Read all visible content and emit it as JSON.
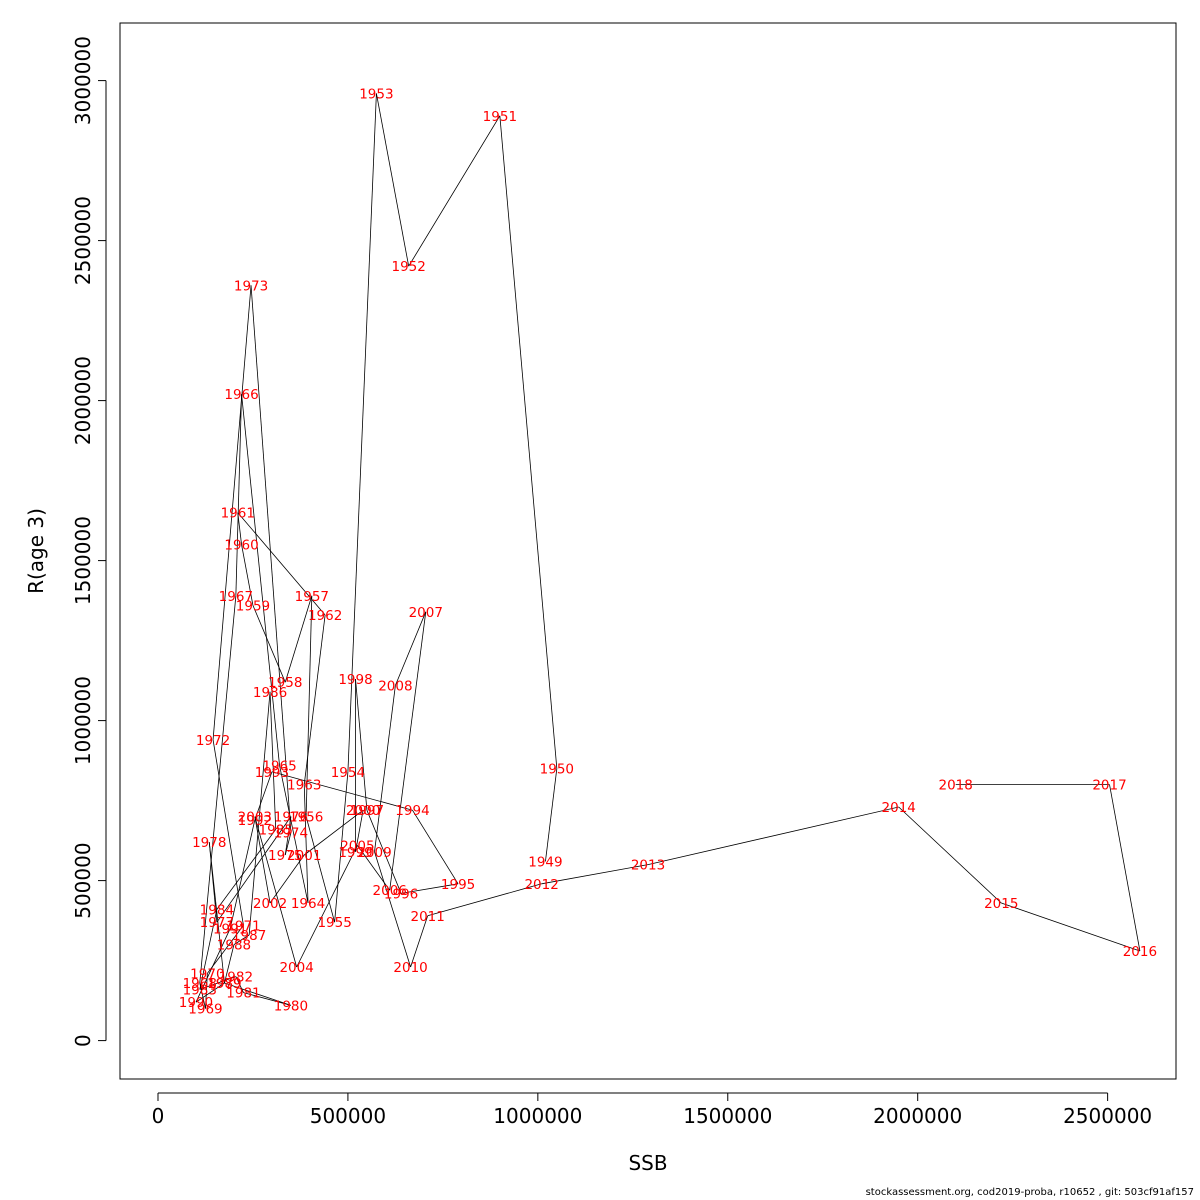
{
  "chart_data": {
    "type": "line",
    "xlabel": "SSB",
    "ylabel": "R(age 3)",
    "xlim": [
      -100000,
      2680000
    ],
    "ylim": [
      -120000,
      3180000
    ],
    "xticks": [
      0,
      500000,
      1000000,
      1500000,
      2000000,
      2500000
    ],
    "xtick_labels": [
      "0",
      "500000",
      "1000000",
      "1500000",
      "2000000",
      "2500000"
    ],
    "yticks": [
      0,
      500000,
      1000000,
      1500000,
      2000000,
      2500000,
      3000000
    ],
    "ytick_labels": [
      "0",
      "500000",
      "1000000",
      "1500000",
      "2000000",
      "2500000",
      "3000000"
    ],
    "label_color": "#ff0000",
    "line_color": "#000000",
    "series": [
      {
        "points": [
          {
            "year": "1949",
            "x": 1020000,
            "y": 560000
          },
          {
            "year": "1950",
            "x": 1050000,
            "y": 850000
          },
          {
            "year": "1951",
            "x": 900000,
            "y": 2890000
          },
          {
            "year": "1952",
            "x": 660000,
            "y": 2420000
          },
          {
            "year": "1953",
            "x": 575000,
            "y": 2960000
          },
          {
            "year": "1954",
            "x": 500000,
            "y": 840000
          },
          {
            "year": "1955",
            "x": 465000,
            "y": 370000
          },
          {
            "year": "1956",
            "x": 390000,
            "y": 700000
          },
          {
            "year": "1957",
            "x": 405000,
            "y": 1390000
          },
          {
            "year": "1958",
            "x": 335000,
            "y": 1120000
          },
          {
            "year": "1959",
            "x": 250000,
            "y": 1360000
          },
          {
            "year": "1960",
            "x": 220000,
            "y": 1550000
          },
          {
            "year": "1961",
            "x": 210000,
            "y": 1650000
          },
          {
            "year": "1962",
            "x": 440000,
            "y": 1330000
          },
          {
            "year": "1963",
            "x": 385000,
            "y": 800000
          },
          {
            "year": "1964",
            "x": 395000,
            "y": 430000
          },
          {
            "year": "1965",
            "x": 320000,
            "y": 860000
          },
          {
            "year": "1966",
            "x": 220000,
            "y": 2020000
          },
          {
            "year": "1967",
            "x": 205000,
            "y": 1390000
          },
          {
            "year": "1968",
            "x": 110000,
            "y": 180000
          },
          {
            "year": "1969",
            "x": 125000,
            "y": 100000
          },
          {
            "year": "1970",
            "x": 130000,
            "y": 210000
          },
          {
            "year": "1971",
            "x": 225000,
            "y": 360000
          },
          {
            "year": "1972",
            "x": 145000,
            "y": 940000
          },
          {
            "year": "1973",
            "x": 245000,
            "y": 2360000
          },
          {
            "year": "1974",
            "x": 350000,
            "y": 650000
          },
          {
            "year": "1975",
            "x": 335000,
            "y": 580000
          },
          {
            "year": "1976",
            "x": 350000,
            "y": 700000
          },
          {
            "year": "1977",
            "x": 155000,
            "y": 370000
          },
          {
            "year": "1978",
            "x": 135000,
            "y": 620000
          },
          {
            "year": "1979",
            "x": 175000,
            "y": 180000
          },
          {
            "year": "1980",
            "x": 350000,
            "y": 110000
          },
          {
            "year": "1981",
            "x": 225000,
            "y": 150000
          },
          {
            "year": "1982",
            "x": 205000,
            "y": 200000
          },
          {
            "year": "1983",
            "x": 110000,
            "y": 160000
          },
          {
            "year": "1984",
            "x": 155000,
            "y": 410000
          },
          {
            "year": "1985",
            "x": 310000,
            "y": 660000
          },
          {
            "year": "1986",
            "x": 295000,
            "y": 1090000
          },
          {
            "year": "1987",
            "x": 240000,
            "y": 330000
          },
          {
            "year": "1988",
            "x": 200000,
            "y": 300000
          },
          {
            "year": "1989",
            "x": 175000,
            "y": 180000
          },
          {
            "year": "1990",
            "x": 100000,
            "y": 120000
          },
          {
            "year": "1991",
            "x": 190000,
            "y": 350000
          },
          {
            "year": "1992",
            "x": 255000,
            "y": 690000
          },
          {
            "year": "1993",
            "x": 300000,
            "y": 840000
          },
          {
            "year": "1994",
            "x": 670000,
            "y": 720000
          },
          {
            "year": "1995",
            "x": 790000,
            "y": 490000
          },
          {
            "year": "1996",
            "x": 640000,
            "y": 460000
          },
          {
            "year": "1997",
            "x": 550000,
            "y": 720000
          },
          {
            "year": "1998",
            "x": 520000,
            "y": 1130000
          },
          {
            "year": "1999",
            "x": 520000,
            "y": 590000
          },
          {
            "year": "2000",
            "x": 540000,
            "y": 720000
          },
          {
            "year": "2001",
            "x": 385000,
            "y": 580000
          },
          {
            "year": "2002",
            "x": 295000,
            "y": 430000
          },
          {
            "year": "2003",
            "x": 255000,
            "y": 700000
          },
          {
            "year": "2004",
            "x": 365000,
            "y": 230000
          },
          {
            "year": "2005",
            "x": 525000,
            "y": 610000
          },
          {
            "year": "2006",
            "x": 610000,
            "y": 470000
          },
          {
            "year": "2007",
            "x": 705000,
            "y": 1340000
          },
          {
            "year": "2008",
            "x": 625000,
            "y": 1110000
          },
          {
            "year": "2009",
            "x": 570000,
            "y": 590000
          },
          {
            "year": "2010",
            "x": 665000,
            "y": 230000
          },
          {
            "year": "2011",
            "x": 710000,
            "y": 390000
          },
          {
            "year": "2012",
            "x": 1010000,
            "y": 490000
          },
          {
            "year": "2013",
            "x": 1290000,
            "y": 550000
          },
          {
            "year": "2014",
            "x": 1950000,
            "y": 730000
          },
          {
            "year": "2015",
            "x": 2220000,
            "y": 430000
          },
          {
            "year": "2016",
            "x": 2585000,
            "y": 280000
          },
          {
            "year": "2017",
            "x": 2505000,
            "y": 800000
          },
          {
            "year": "2018",
            "x": 2100000,
            "y": 800000
          }
        ]
      }
    ]
  },
  "footer_text": "stockassessment.org, cod2019-proba, r10652 , git: 503cf91af157"
}
